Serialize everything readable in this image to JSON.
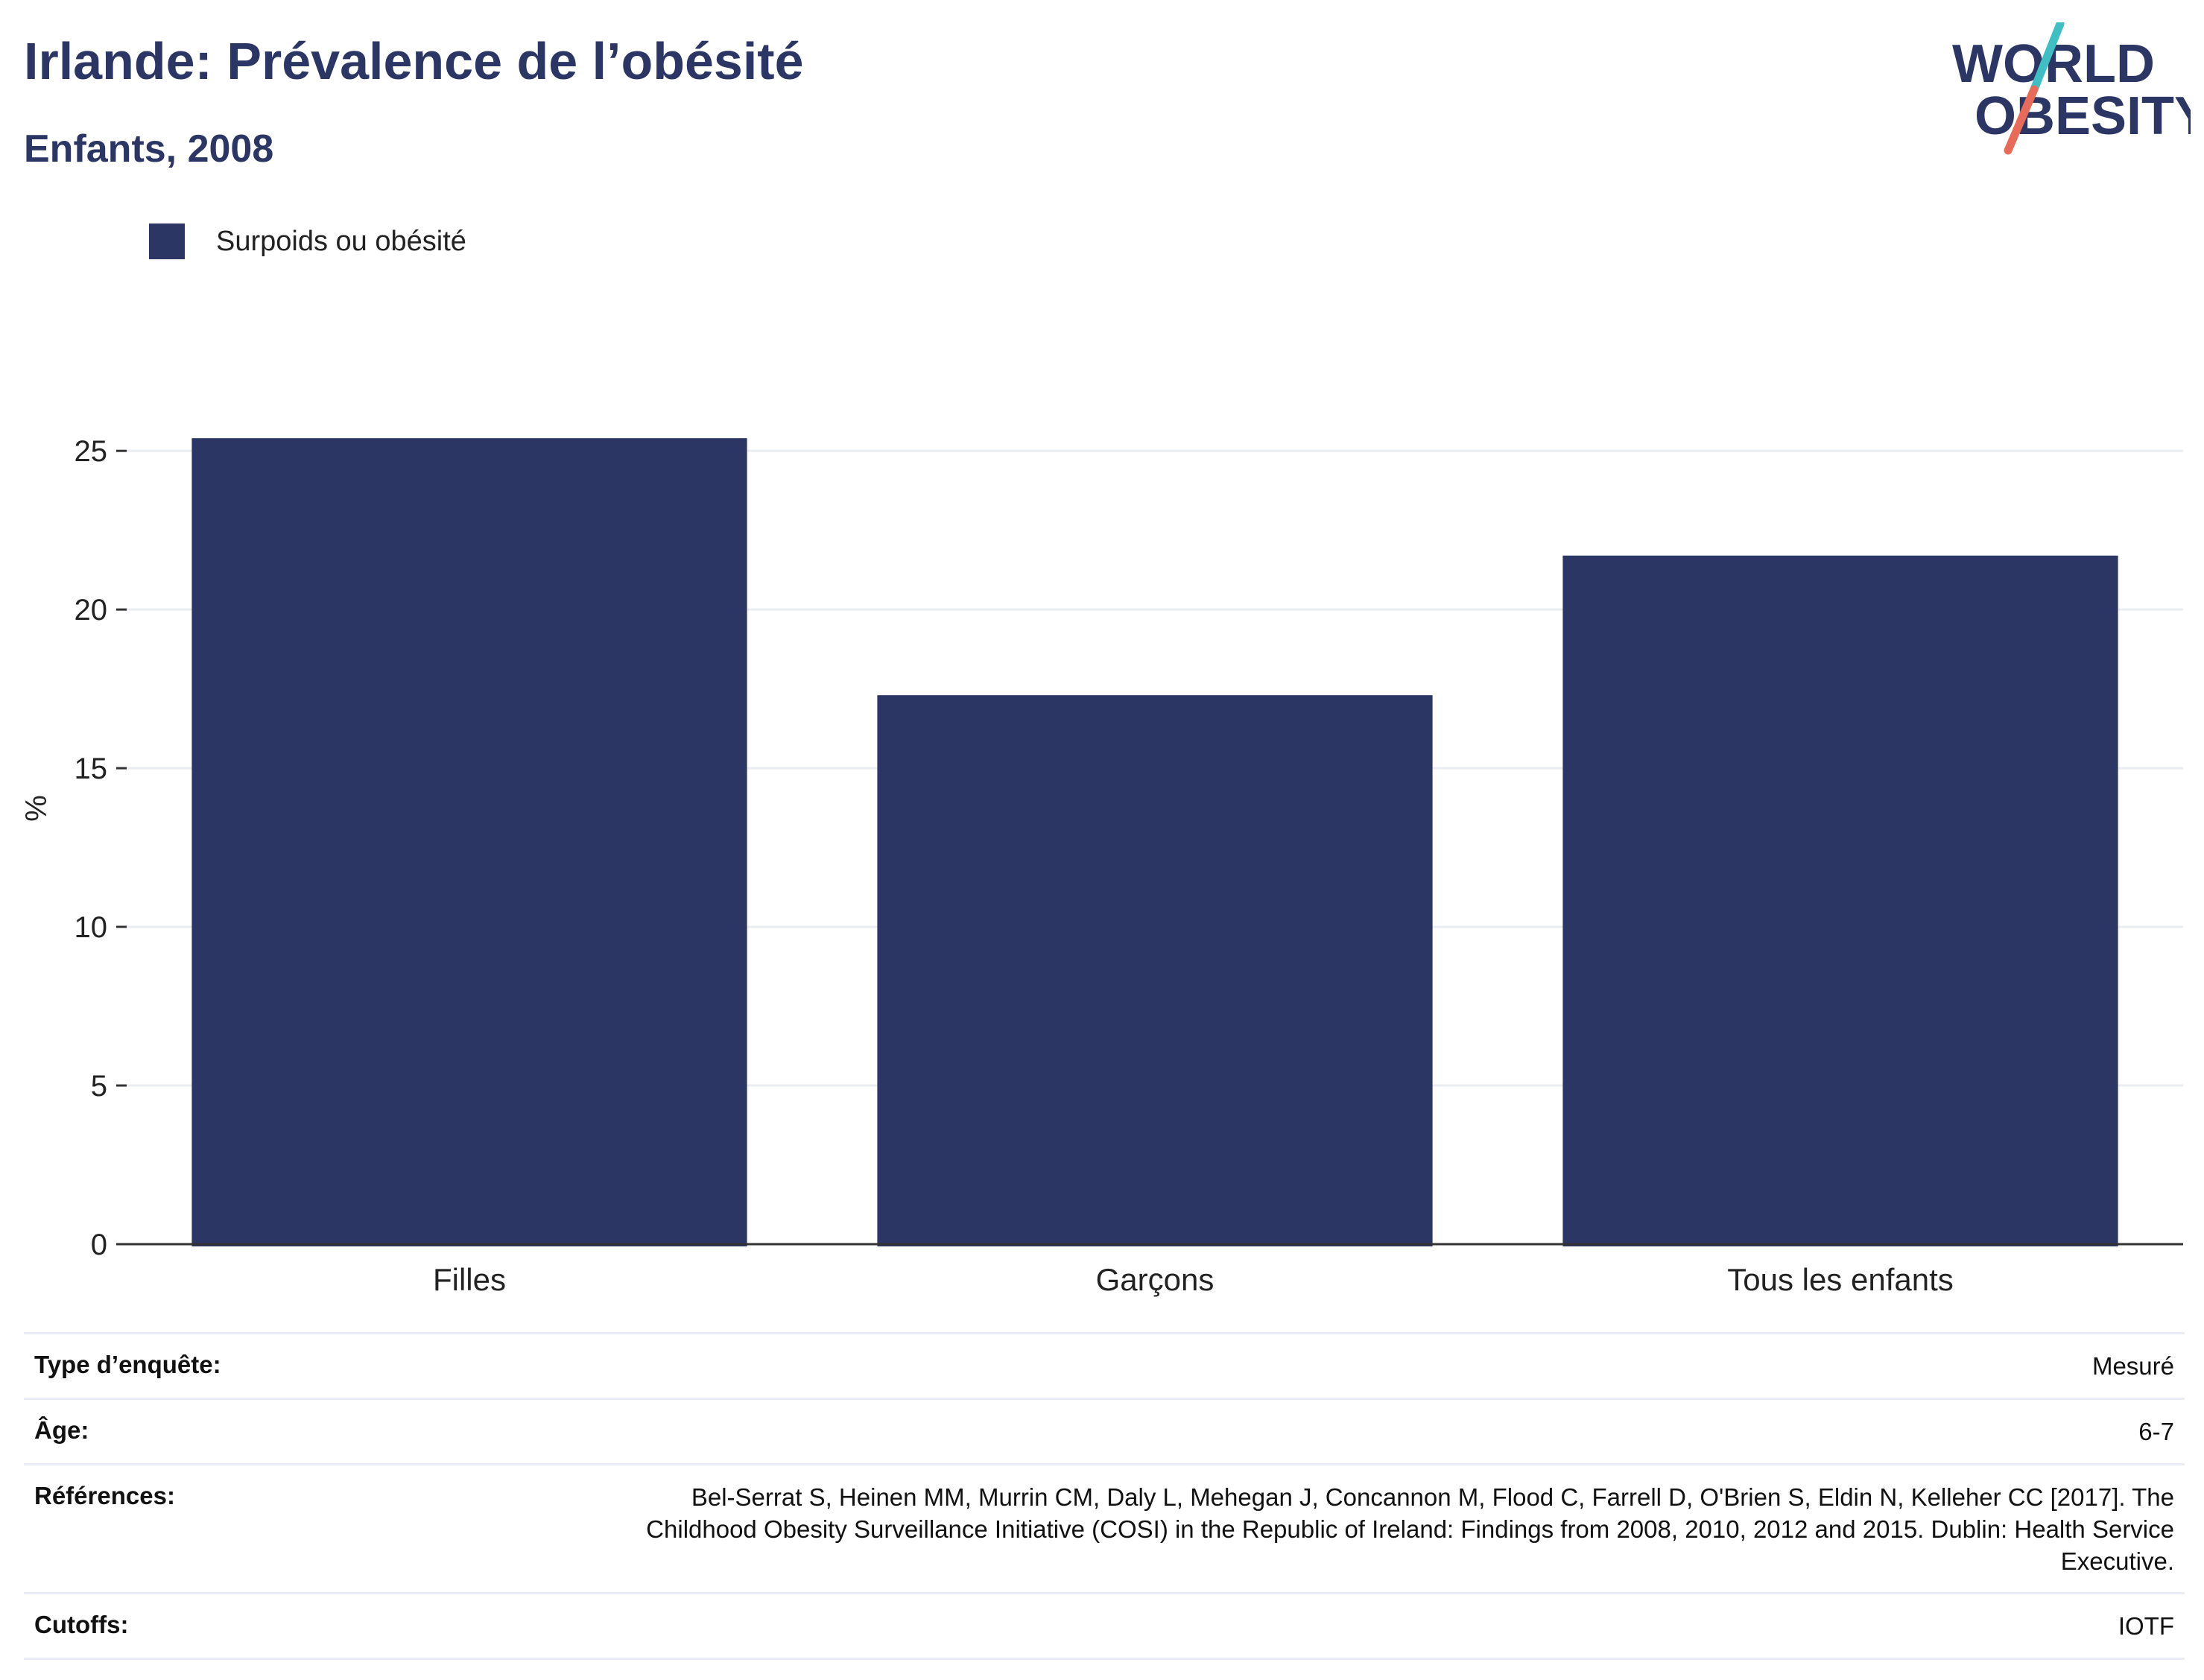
{
  "header": {
    "title": "Irlande: Prévalence de l’obésité",
    "subtitle": "Enfants, 2008"
  },
  "logo": {
    "line1": "WORLD",
    "line2": "OBESITY",
    "slash_colors": [
      "#3fbfc4",
      "#e86b5a"
    ]
  },
  "chart_data": {
    "type": "bar",
    "title": "Irlande: Prévalence de l’obésité",
    "subtitle": "Enfants, 2008",
    "categories": [
      "Filles",
      "Garçons",
      "Tous les enfants"
    ],
    "series": [
      {
        "name": "Surpoids ou obésité",
        "color": "#2b3664",
        "values": [
          25.4,
          17.3,
          21.7
        ]
      }
    ],
    "ylabel": "%",
    "xlabel": "",
    "ylim": [
      0,
      27
    ],
    "yticks": [
      0,
      5,
      10,
      15,
      20,
      25
    ],
    "grid": true,
    "legend_position": "top-left"
  },
  "metadata": [
    {
      "key": "Type d’enquête:",
      "value": "Mesuré"
    },
    {
      "key": "Âge:",
      "value": "6-7"
    },
    {
      "key": "Références:",
      "value": "Bel-Serrat S, Heinen MM, Murrin CM, Daly L, Mehegan J, Concannon M, Flood C, Farrell D, O'Brien S, Eldin N, Kelleher CC [2017]. The Childhood Obesity Surveillance Initiative (COSI) in the Republic of Ireland: Findings from 2008, 2010, 2012 and 2015. Dublin: Health Service Executive."
    },
    {
      "key": "Cutoffs:",
      "value": "IOTF"
    }
  ]
}
